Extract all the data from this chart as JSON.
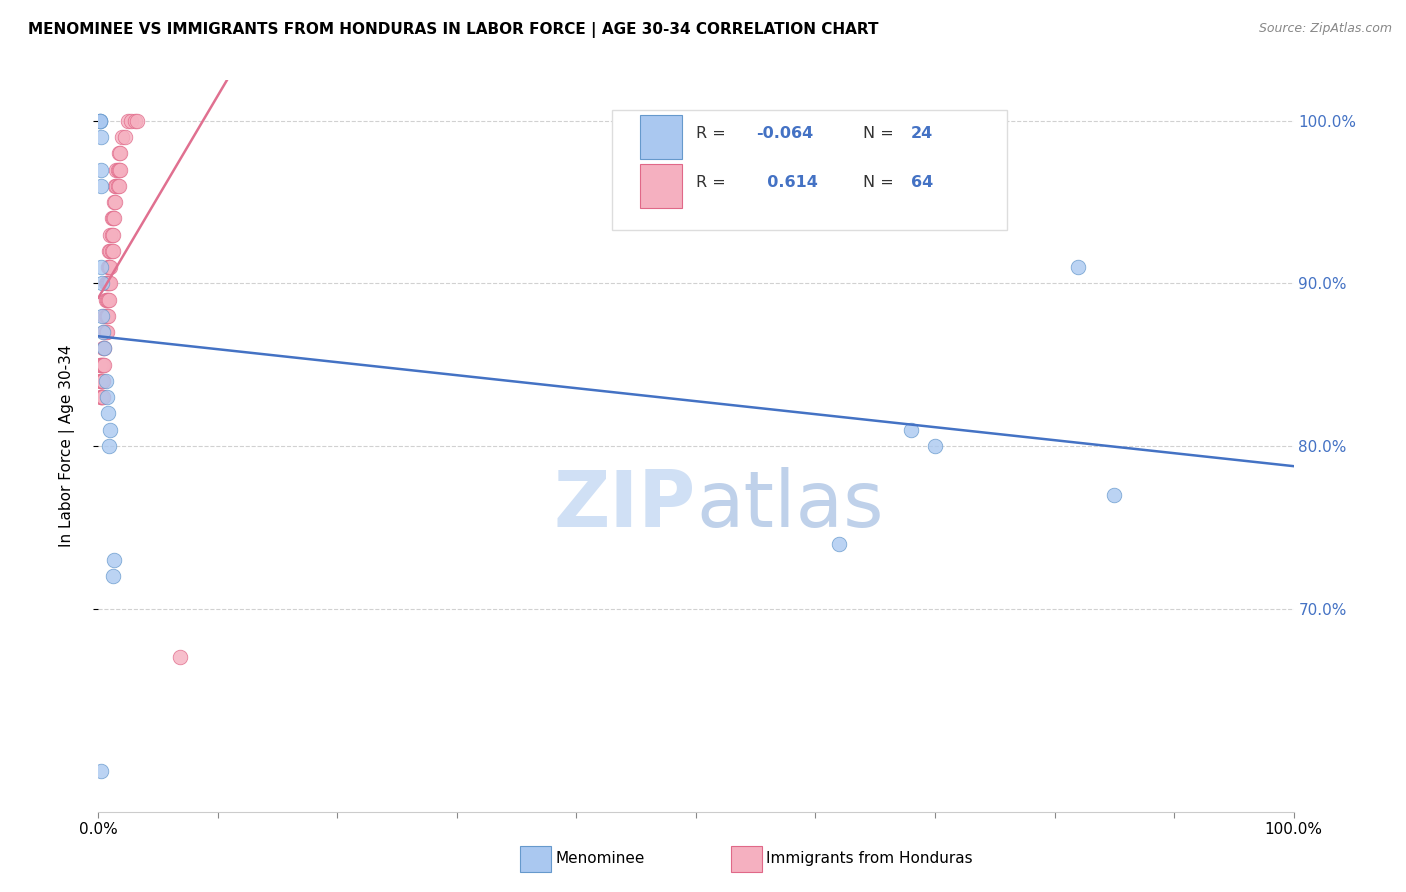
{
  "title": "MENOMINEE VS IMMIGRANTS FROM HONDURAS IN LABOR FORCE | AGE 30-34 CORRELATION CHART",
  "source": "Source: ZipAtlas.com",
  "ylabel": "In Labor Force | Age 30-34",
  "menominee_R": "-0.064",
  "menominee_N": "24",
  "honduras_R": "0.614",
  "honduras_N": "64",
  "menominee_x": [
    0.001,
    0.001,
    0.001,
    0.002,
    0.002,
    0.002,
    0.002,
    0.003,
    0.003,
    0.004,
    0.005,
    0.006,
    0.007,
    0.008,
    0.009,
    0.01,
    0.012,
    0.013,
    0.62,
    0.68,
    0.7,
    0.82,
    0.85,
    0.002
  ],
  "menominee_y": [
    1.0,
    1.0,
    1.0,
    0.99,
    0.97,
    0.96,
    0.91,
    0.9,
    0.88,
    0.87,
    0.86,
    0.84,
    0.83,
    0.82,
    0.8,
    0.81,
    0.72,
    0.73,
    0.74,
    0.81,
    0.8,
    0.91,
    0.77,
    0.6
  ],
  "honduras_x": [
    0.001,
    0.001,
    0.002,
    0.002,
    0.002,
    0.002,
    0.003,
    0.003,
    0.003,
    0.003,
    0.004,
    0.004,
    0.004,
    0.004,
    0.005,
    0.005,
    0.005,
    0.005,
    0.006,
    0.006,
    0.006,
    0.006,
    0.007,
    0.007,
    0.007,
    0.007,
    0.008,
    0.008,
    0.008,
    0.008,
    0.009,
    0.009,
    0.009,
    0.009,
    0.01,
    0.01,
    0.01,
    0.01,
    0.011,
    0.011,
    0.011,
    0.012,
    0.012,
    0.012,
    0.013,
    0.013,
    0.014,
    0.014,
    0.015,
    0.015,
    0.016,
    0.016,
    0.017,
    0.017,
    0.017,
    0.018,
    0.018,
    0.02,
    0.022,
    0.025,
    0.027,
    0.031,
    0.032,
    0.068
  ],
  "honduras_y": [
    0.84,
    0.85,
    0.83,
    0.84,
    0.85,
    0.83,
    0.84,
    0.85,
    0.84,
    0.83,
    0.86,
    0.85,
    0.84,
    0.83,
    0.88,
    0.87,
    0.86,
    0.85,
    0.9,
    0.89,
    0.88,
    0.87,
    0.9,
    0.89,
    0.88,
    0.87,
    0.91,
    0.9,
    0.89,
    0.88,
    0.92,
    0.91,
    0.9,
    0.89,
    0.93,
    0.92,
    0.91,
    0.9,
    0.94,
    0.93,
    0.92,
    0.94,
    0.93,
    0.92,
    0.95,
    0.94,
    0.96,
    0.95,
    0.97,
    0.96,
    0.97,
    0.96,
    0.98,
    0.97,
    0.96,
    0.98,
    0.97,
    0.99,
    0.99,
    1.0,
    1.0,
    1.0,
    1.0,
    0.67
  ],
  "xlim": [
    0.0,
    1.0
  ],
  "ylim": [
    0.575,
    1.025
  ],
  "yticks": [
    0.7,
    0.8,
    0.9,
    1.0
  ],
  "xticks": [
    0.0,
    0.1,
    0.2,
    0.3,
    0.4,
    0.5,
    0.6,
    0.7,
    0.8,
    0.9,
    1.0
  ],
  "menominee_color": "#aac8f0",
  "menominee_edge": "#6699cc",
  "honduras_color": "#f5b0c0",
  "honduras_edge": "#e06888",
  "blue_line_color": "#4472c4",
  "pink_line_color": "#e07090",
  "watermark_color": "#d0e0f5",
  "background_color": "#ffffff",
  "grid_color": "#cccccc"
}
